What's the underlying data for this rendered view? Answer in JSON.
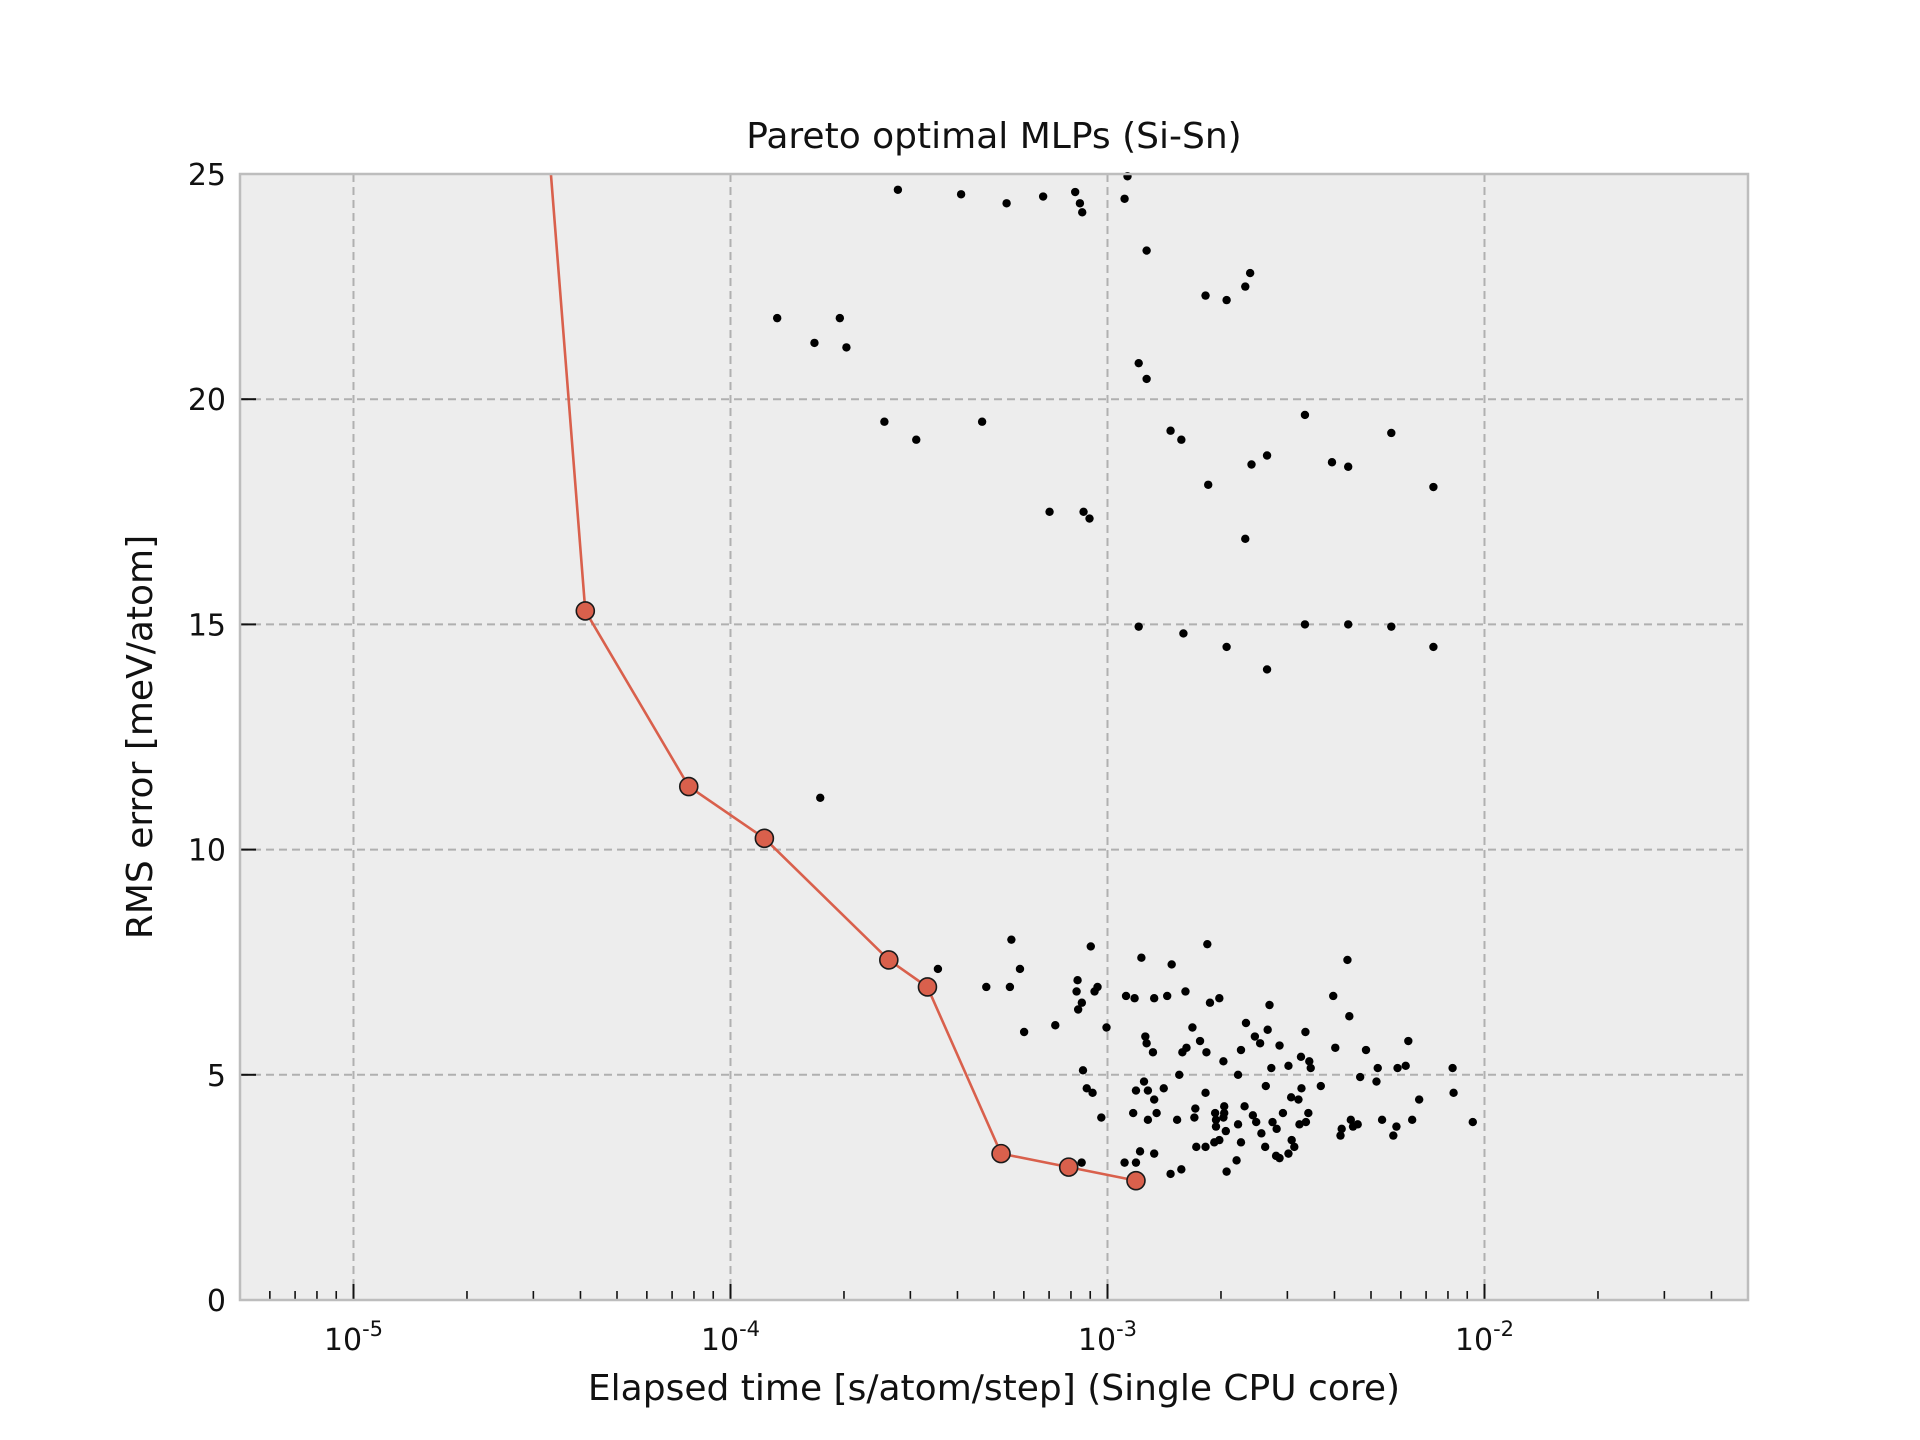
{
  "chart_data": {
    "type": "scatter",
    "title": "Pareto optimal MLPs (Si-Sn)",
    "xlabel": "Elapsed time [s/atom/step] (Single CPU core)",
    "ylabel": "RMS error [meV/atom]",
    "x_scale": "log",
    "xlim": [
      5e-06,
      0.05
    ],
    "ylim": [
      0,
      25
    ],
    "grid": true,
    "x_tick_values": [
      1e-05,
      0.0001,
      0.001,
      0.01
    ],
    "x_tick_labels": [
      {
        "base": "10",
        "exp": "-5"
      },
      {
        "base": "10",
        "exp": "-4"
      },
      {
        "base": "10",
        "exp": "-3"
      },
      {
        "base": "10",
        "exp": "-2"
      }
    ],
    "y_ticks": [
      0,
      5,
      10,
      15,
      20,
      25
    ],
    "y_tick_labels": [
      "0",
      "5",
      "10",
      "15",
      "20",
      "25"
    ],
    "colors": {
      "plot_background": "#ededed",
      "pareto": "#d9604c",
      "points": "#000000",
      "grid": "#b0b0b0",
      "frame": "#bdbdbd"
    },
    "pareto_line_start": [
      3.34e-05,
      25
    ],
    "pareto_front": [
      [
        4.12e-05,
        15.3
      ],
      [
        7.75e-05,
        11.4
      ],
      [
        0.000123,
        10.25
      ],
      [
        0.000263,
        7.55
      ],
      [
        0.000333,
        6.95
      ],
      [
        0.000522,
        3.25
      ],
      [
        0.000789,
        2.95
      ],
      [
        0.00119,
        2.65
      ]
    ],
    "points": [
      [
        0.000278,
        24.65
      ],
      [
        0.000409,
        24.55
      ],
      [
        0.00054,
        24.35
      ],
      [
        0.000675,
        24.5
      ],
      [
        0.000821,
        24.6
      ],
      [
        0.000845,
        24.35
      ],
      [
        0.000857,
        24.15
      ],
      [
        0.00111,
        24.45
      ],
      [
        0.00113,
        24.95
      ],
      [
        0.00127,
        23.3
      ],
      [
        0.000133,
        21.8
      ],
      [
        0.000195,
        21.8
      ],
      [
        0.000167,
        21.25
      ],
      [
        0.000203,
        21.15
      ],
      [
        0.00182,
        22.3
      ],
      [
        0.00207,
        22.2
      ],
      [
        0.00232,
        22.5
      ],
      [
        0.00239,
        22.8
      ],
      [
        0.00121,
        20.8
      ],
      [
        0.00127,
        20.45
      ],
      [
        0.00334,
        19.65
      ],
      [
        0.000256,
        19.5
      ],
      [
        0.000311,
        19.1
      ],
      [
        0.000465,
        19.5
      ],
      [
        0.00147,
        19.3
      ],
      [
        0.00157,
        19.1
      ],
      [
        0.00566,
        19.25
      ],
      [
        0.00394,
        18.6
      ],
      [
        0.00435,
        18.5
      ],
      [
        0.00265,
        18.75
      ],
      [
        0.00241,
        18.55
      ],
      [
        0.00185,
        18.1
      ],
      [
        0.00732,
        18.05
      ],
      [
        0.000702,
        17.5
      ],
      [
        0.000864,
        17.5
      ],
      [
        0.000896,
        17.35
      ],
      [
        0.00232,
        16.9
      ],
      [
        0.00121,
        14.95
      ],
      [
        0.00159,
        14.8
      ],
      [
        0.00207,
        14.5
      ],
      [
        0.00265,
        14.0
      ],
      [
        0.00334,
        15.0
      ],
      [
        0.00435,
        15.0
      ],
      [
        0.00566,
        14.95
      ],
      [
        0.00732,
        14.5
      ],
      [
        0.000173,
        11.15
      ],
      [
        0.000556,
        8.0
      ],
      [
        0.000586,
        7.35
      ],
      [
        0.000551,
        6.95
      ],
      [
        0.000601,
        5.95
      ],
      [
        0.000477,
        6.95
      ],
      [
        0.000903,
        7.85
      ],
      [
        0.000355,
        7.35
      ],
      [
        0.000833,
        7.1
      ],
      [
        0.000828,
        6.85
      ],
      [
        0.000855,
        6.6
      ],
      [
        0.000836,
        6.45
      ],
      [
        0.000924,
        6.85
      ],
      [
        0.000941,
        6.95
      ],
      [
        0.000727,
        6.1
      ],
      [
        0.000994,
        6.05
      ],
      [
        0.00112,
        6.75
      ],
      [
        0.00118,
        6.7
      ],
      [
        0.00123,
        7.6
      ],
      [
        0.00133,
        6.7
      ],
      [
        0.00144,
        6.75
      ],
      [
        0.00148,
        7.45
      ],
      [
        0.00161,
        6.85
      ],
      [
        0.00184,
        7.9
      ],
      [
        0.00187,
        6.6
      ],
      [
        0.00198,
        6.7
      ],
      [
        0.00269,
        6.55
      ],
      [
        0.00335,
        5.95
      ],
      [
        0.00433,
        7.55
      ],
      [
        0.00397,
        6.75
      ],
      [
        0.00438,
        6.3
      ],
      [
        0.00126,
        5.85
      ],
      [
        0.00127,
        5.7
      ],
      [
        0.00132,
        5.5
      ],
      [
        0.00155,
        5.0
      ],
      [
        0.00158,
        5.5
      ],
      [
        0.00162,
        5.6
      ],
      [
        0.00168,
        6.05
      ],
      [
        0.00176,
        5.75
      ],
      [
        0.00183,
        5.5
      ],
      [
        0.00203,
        5.3
      ],
      [
        0.00222,
        5.0
      ],
      [
        0.00226,
        5.55
      ],
      [
        0.00233,
        6.15
      ],
      [
        0.00246,
        5.85
      ],
      [
        0.00254,
        5.7
      ],
      [
        0.00266,
        6.0
      ],
      [
        0.00272,
        5.15
      ],
      [
        0.00286,
        5.65
      ],
      [
        0.00302,
        5.2
      ],
      [
        0.00326,
        5.4
      ],
      [
        0.00346,
        5.15
      ],
      [
        0.00343,
        5.3
      ],
      [
        0.00368,
        4.75
      ],
      [
        0.00402,
        5.6
      ],
      [
        0.00485,
        5.55
      ],
      [
        0.00468,
        4.95
      ],
      [
        0.00517,
        4.85
      ],
      [
        0.00521,
        5.15
      ],
      [
        0.00588,
        5.15
      ],
      [
        0.00618,
        5.2
      ],
      [
        0.00628,
        5.75
      ],
      [
        0.000861,
        5.1
      ],
      [
        0.000881,
        4.7
      ],
      [
        0.000913,
        4.6
      ],
      [
        0.000963,
        4.05
      ],
      [
        0.00117,
        4.15
      ],
      [
        0.00119,
        4.65
      ],
      [
        0.00125,
        4.85
      ],
      [
        0.00128,
        4.65
      ],
      [
        0.00128,
        4.0
      ],
      [
        0.00133,
        4.45
      ],
      [
        0.00135,
        4.15
      ],
      [
        0.00141,
        4.7
      ],
      [
        0.00153,
        4.0
      ],
      [
        0.0017,
        4.05
      ],
      [
        0.00171,
        4.25
      ],
      [
        0.00182,
        4.6
      ],
      [
        0.00193,
        4.15
      ],
      [
        0.00194,
        4.0
      ],
      [
        0.00203,
        4.05
      ],
      [
        0.00204,
        4.3
      ],
      [
        0.00194,
        3.85
      ],
      [
        0.00222,
        3.9
      ],
      [
        0.00231,
        4.3
      ],
      [
        0.00243,
        4.1
      ],
      [
        0.00248,
        3.95
      ],
      [
        0.00256,
        3.7
      ],
      [
        0.00263,
        4.75
      ],
      [
        0.00274,
        3.95
      ],
      [
        0.00292,
        4.15
      ],
      [
        0.00281,
        3.8
      ],
      [
        0.00307,
        4.5
      ],
      [
        0.00321,
        4.45
      ],
      [
        0.00327,
        4.7
      ],
      [
        0.00308,
        3.55
      ],
      [
        0.00323,
        3.9
      ],
      [
        0.00336,
        3.95
      ],
      [
        0.00341,
        4.15
      ],
      [
        0.00418,
        3.8
      ],
      [
        0.00442,
        4.0
      ],
      [
        0.00448,
        3.85
      ],
      [
        0.00461,
        3.9
      ],
      [
        0.00535,
        4.0
      ],
      [
        0.00573,
        3.65
      ],
      [
        0.00643,
        4.0
      ],
      [
        0.00671,
        4.45
      ],
      [
        0.00828,
        4.6
      ],
      [
        0.00931,
        3.95
      ],
      [
        0.00584,
        3.85
      ],
      [
        0.00415,
        3.65
      ],
      [
        0.00119,
        3.05
      ],
      [
        0.00122,
        3.3
      ],
      [
        0.00133,
        3.25
      ],
      [
        0.00172,
        3.4
      ],
      [
        0.00182,
        3.4
      ],
      [
        0.00207,
        2.85
      ],
      [
        0.0022,
        3.1
      ],
      [
        0.00198,
        3.55
      ],
      [
        0.00226,
        3.5
      ],
      [
        0.00262,
        3.4
      ],
      [
        0.00286,
        3.15
      ],
      [
        0.00302,
        3.25
      ],
      [
        0.00313,
        3.4
      ],
      [
        0.00147,
        2.8
      ],
      [
        0.00157,
        2.9
      ],
      [
        0.000854,
        3.05
      ],
      [
        0.00111,
        3.05
      ],
      [
        0.00192,
        3.5
      ],
      [
        0.00206,
        3.75
      ],
      [
        0.0028,
        3.2
      ],
      [
        0.00823,
        5.15
      ],
      [
        0.00204,
        4.15
      ]
    ]
  }
}
